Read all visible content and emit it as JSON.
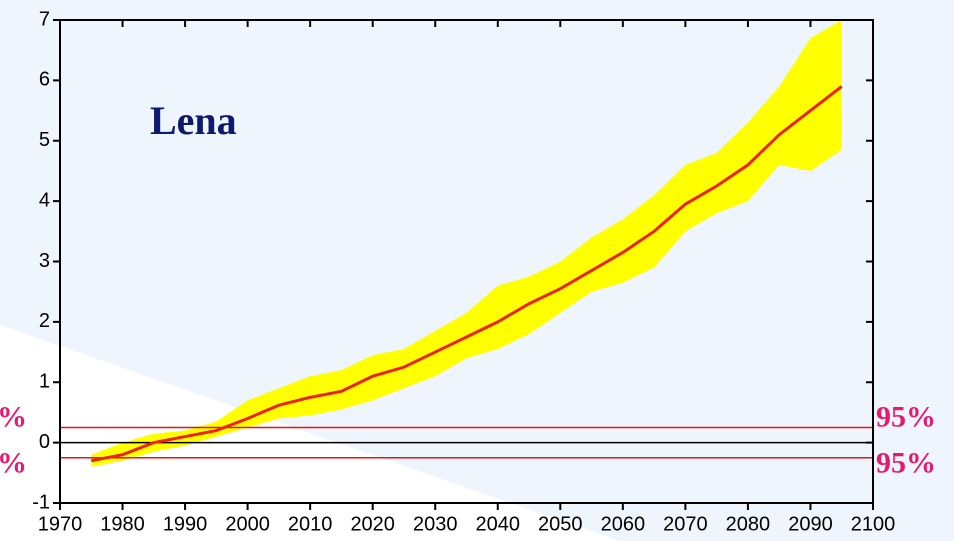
{
  "chart_data": {
    "type": "line",
    "annotation": "Lena",
    "x": [
      1975,
      1980,
      1985,
      1990,
      1995,
      2000,
      2005,
      2010,
      2015,
      2020,
      2025,
      2030,
      2035,
      2040,
      2045,
      2050,
      2055,
      2060,
      2065,
      2070,
      2075,
      2080,
      2085,
      2090,
      2095
    ],
    "values": [
      -0.3,
      -0.2,
      0.0,
      0.1,
      0.2,
      0.4,
      0.62,
      0.75,
      0.85,
      1.1,
      1.25,
      1.5,
      1.75,
      2.0,
      2.3,
      2.55,
      2.85,
      3.15,
      3.5,
      3.95,
      4.25,
      4.6,
      5.1,
      5.5,
      5.9
    ],
    "color": "#ee2211",
    "band": {
      "color": "#ffff00",
      "lower": [
        -0.4,
        -0.3,
        -0.15,
        -0.05,
        0.1,
        0.25,
        0.4,
        0.45,
        0.55,
        0.7,
        0.9,
        1.1,
        1.4,
        1.55,
        1.8,
        2.15,
        2.5,
        2.65,
        2.9,
        3.5,
        3.8,
        4.0,
        4.6,
        4.5,
        4.85
      ],
      "upper": [
        -0.2,
        0.0,
        0.15,
        0.2,
        0.35,
        0.7,
        0.9,
        1.1,
        1.2,
        1.45,
        1.55,
        1.85,
        2.15,
        2.6,
        2.75,
        3.0,
        3.4,
        3.7,
        4.1,
        4.6,
        4.8,
        5.3,
        5.9,
        6.7,
        7.0
      ]
    },
    "hlines": [
      {
        "value": 0.25,
        "label": "95%"
      },
      {
        "value": -0.25,
        "label": "95%"
      }
    ],
    "hline_color": "#ee1111",
    "reference_line": 0,
    "xlim": [
      1970,
      2100
    ],
    "xticks": [
      1970,
      1980,
      1990,
      2000,
      2010,
      2020,
      2030,
      2040,
      2050,
      2060,
      2070,
      2080,
      2090,
      2100
    ],
    "ylim": [
      -1,
      7
    ],
    "yticks": [
      -1,
      0,
      1,
      2,
      3,
      4,
      5,
      6,
      7
    ]
  }
}
